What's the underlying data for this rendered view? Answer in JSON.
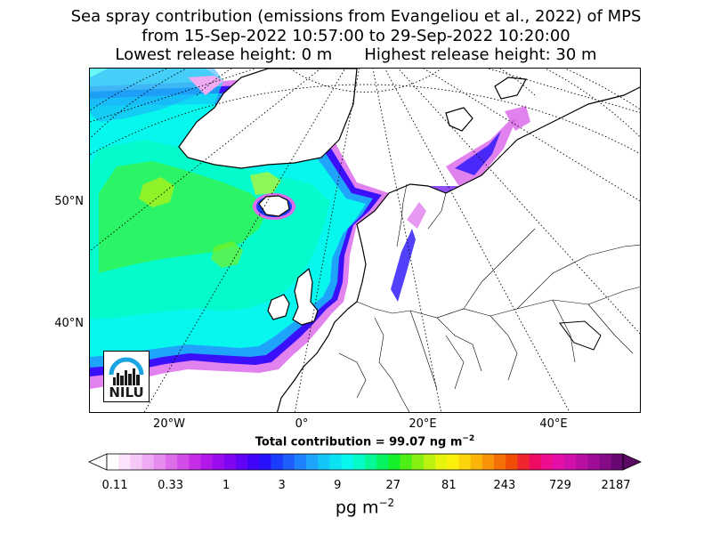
{
  "title": {
    "line1": "Sea spray contribution (emissions from Evangeliou et al., 2022) of MPS",
    "line2": "from 15-Sep-2022 10:57:00 to 29-Sep-2022 10:20:00",
    "line3_left": "Lowest release height: 0 m",
    "line3_right": "Highest release height: 30 m"
  },
  "axes": {
    "lat_labels": [
      "50°N",
      "40°N"
    ],
    "lon_labels": [
      "20°W",
      "0°",
      "20°E",
      "40°E"
    ]
  },
  "total": {
    "prefix": "Total contribution = 99.07 ng m",
    "exponent": "−2"
  },
  "colorbar": {
    "tick_labels": [
      "0.11",
      "0.33",
      "1",
      "3",
      "9",
      "27",
      "81",
      "243",
      "729",
      "2187"
    ],
    "unit_base": "pg m",
    "unit_exponent": "−2",
    "colors": [
      "#ffffff",
      "#fbe3fb",
      "#f5c8f7",
      "#eeaaf3",
      "#e68cef",
      "#dd6ceb",
      "#d24de8",
      "#c52ee6",
      "#b218ea",
      "#9b0bee",
      "#8005f1",
      "#6103f4",
      "#4004f8",
      "#2612fc",
      "#1a3cfd",
      "#1f5efd",
      "#1f82fd",
      "#1fa4fc",
      "#13c6f8",
      "#09e2f2",
      "#07f7ee",
      "#06fbc8",
      "#05f896",
      "#06f462",
      "#14f02a",
      "#4def14",
      "#85f011",
      "#bbf20f",
      "#e7f40c",
      "#fbf00b",
      "#fcd50a",
      "#fbb509",
      "#f89308",
      "#f47007",
      "#f04e06",
      "#ef2530",
      "#ef0a62",
      "#ee0d8f",
      "#e40fa9",
      "#cf10aa",
      "#b80fa2",
      "#9f0c97",
      "#850a88",
      "#6a0873"
    ],
    "under_color": "#ffffff",
    "over_color": "#5a0a63"
  },
  "logo": {
    "text": "NILU",
    "arc_color": "#1aa5e2"
  }
}
